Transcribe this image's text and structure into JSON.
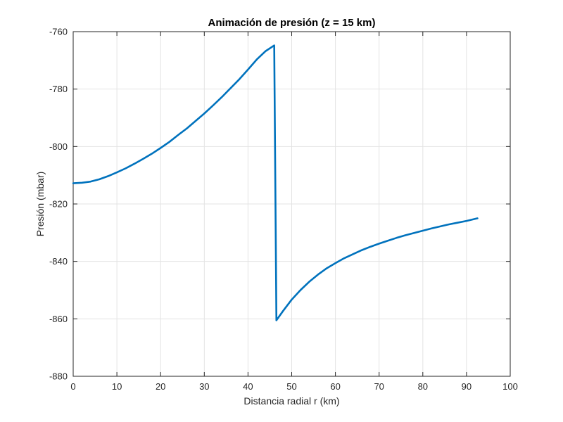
{
  "chart_data": {
    "type": "line",
    "title": "Animación de presión (z = 15 km)",
    "xlabel": "Distancia radial r (km)",
    "ylabel": "Presión (mbar)",
    "xlim": [
      0,
      100
    ],
    "ylim": [
      -880,
      -760
    ],
    "xticks": [
      0,
      10,
      20,
      30,
      40,
      50,
      60,
      70,
      80,
      90,
      100
    ],
    "yticks": [
      -880,
      -860,
      -840,
      -820,
      -800,
      -780,
      -760
    ],
    "grid": true,
    "legend": "none",
    "color": "#0072BD",
    "series": [
      {
        "x": [
          0,
          2,
          4,
          6,
          8,
          10,
          12,
          14,
          16,
          18,
          20,
          22,
          24,
          26,
          28,
          30,
          32,
          34,
          36,
          38,
          40,
          42,
          44,
          46,
          46.5,
          48,
          50,
          52,
          54,
          56,
          58,
          60,
          62,
          64,
          66,
          68,
          70,
          72,
          74,
          76,
          78,
          80,
          82,
          84,
          86,
          88,
          90,
          92.5
        ],
        "y": [
          -812.8,
          -812.6,
          -812.2,
          -811.4,
          -810.3,
          -809.0,
          -807.6,
          -806.0,
          -804.3,
          -802.5,
          -800.5,
          -798.4,
          -796.0,
          -793.7,
          -791.1,
          -788.5,
          -785.7,
          -782.8,
          -779.7,
          -776.6,
          -773.2,
          -769.7,
          -766.8,
          -764.8,
          -860.5,
          -857.3,
          -853.3,
          -850.0,
          -847.1,
          -844.6,
          -842.4,
          -840.6,
          -838.9,
          -837.5,
          -836.1,
          -834.9,
          -833.8,
          -832.8,
          -831.8,
          -830.9,
          -830.1,
          -829.3,
          -828.5,
          -827.8,
          -827.1,
          -826.5,
          -825.9,
          -825.0
        ]
      }
    ]
  }
}
